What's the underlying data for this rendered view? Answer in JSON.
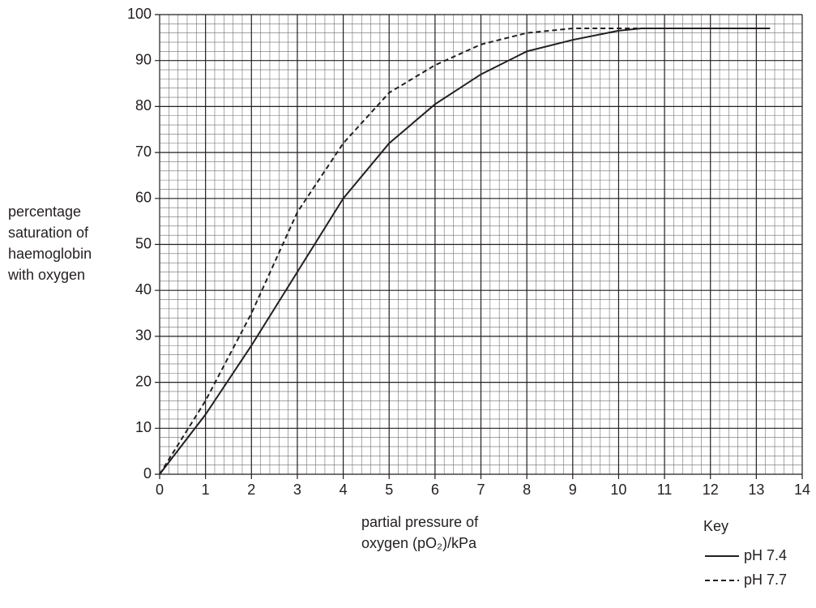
{
  "chart_data": {
    "type": "line",
    "y_label": [
      "percentage",
      "saturation of",
      "haemoglobin",
      "with oxygen"
    ],
    "x_label": [
      "partial pressure of",
      "oxygen (pO₂)/kPa"
    ],
    "legend_title": "Key",
    "xlim": [
      0,
      14
    ],
    "xticks": [
      0,
      1,
      2,
      3,
      4,
      5,
      6,
      7,
      8,
      9,
      10,
      11,
      12,
      13,
      14
    ],
    "ylim": [
      0,
      100
    ],
    "yticks": [
      0,
      10,
      20,
      30,
      40,
      50,
      60,
      70,
      80,
      90,
      100
    ],
    "grid": true,
    "minor_divisions": 5,
    "legend": "lower right",
    "series": [
      {
        "name": "pH 7.4",
        "color": "#231f20",
        "dash": "solid",
        "x": [
          0,
          1,
          2,
          3,
          4,
          5,
          6,
          7,
          8,
          9,
          10,
          10.5,
          11,
          12,
          13.3
        ],
        "values": [
          0,
          13,
          28,
          44,
          60,
          72,
          80.5,
          87,
          92,
          94.5,
          96.5,
          97,
          97,
          97,
          97
        ]
      },
      {
        "name": "pH 7.7",
        "color": "#231f20",
        "dash": "dashed",
        "x": [
          0,
          1,
          2,
          3,
          4,
          5,
          6,
          7,
          8,
          9,
          10,
          10.5
        ],
        "values": [
          0,
          16,
          35,
          57,
          72,
          83,
          89,
          93.5,
          96,
          97,
          97,
          97
        ]
      }
    ]
  }
}
